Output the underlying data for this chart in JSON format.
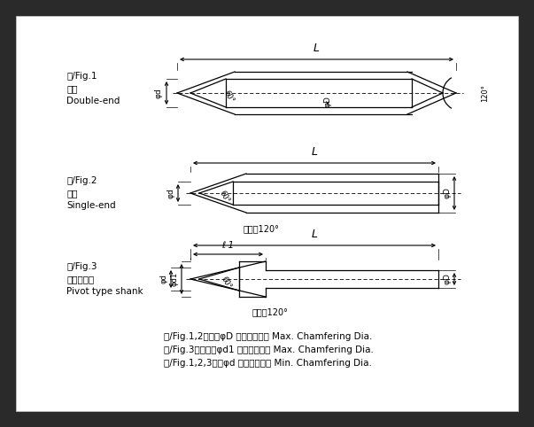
{
  "bg_color": "#2a2a2a",
  "panel_color": "#ffffff",
  "line_color": "#000000",
  "fig1_label": "図/Fig.1\n両刃\nDouble-end",
  "fig2_label": "図/Fig.2\n片刃\nSingle-end",
  "fig3_label": "図/Fig.3\nルーマ形状\nPivot type shank",
  "note1": "図/Fig.1,2　：　φD 最大面取り径 Max. Chamfering Dia.",
  "note2": "図/Fig.3　　　：φd1 最大面取り径 Max. Chamfering Dia.",
  "note3": "図/Fig.1,2,3：　φd 最小面取り径 Min. Chamfering Dia."
}
